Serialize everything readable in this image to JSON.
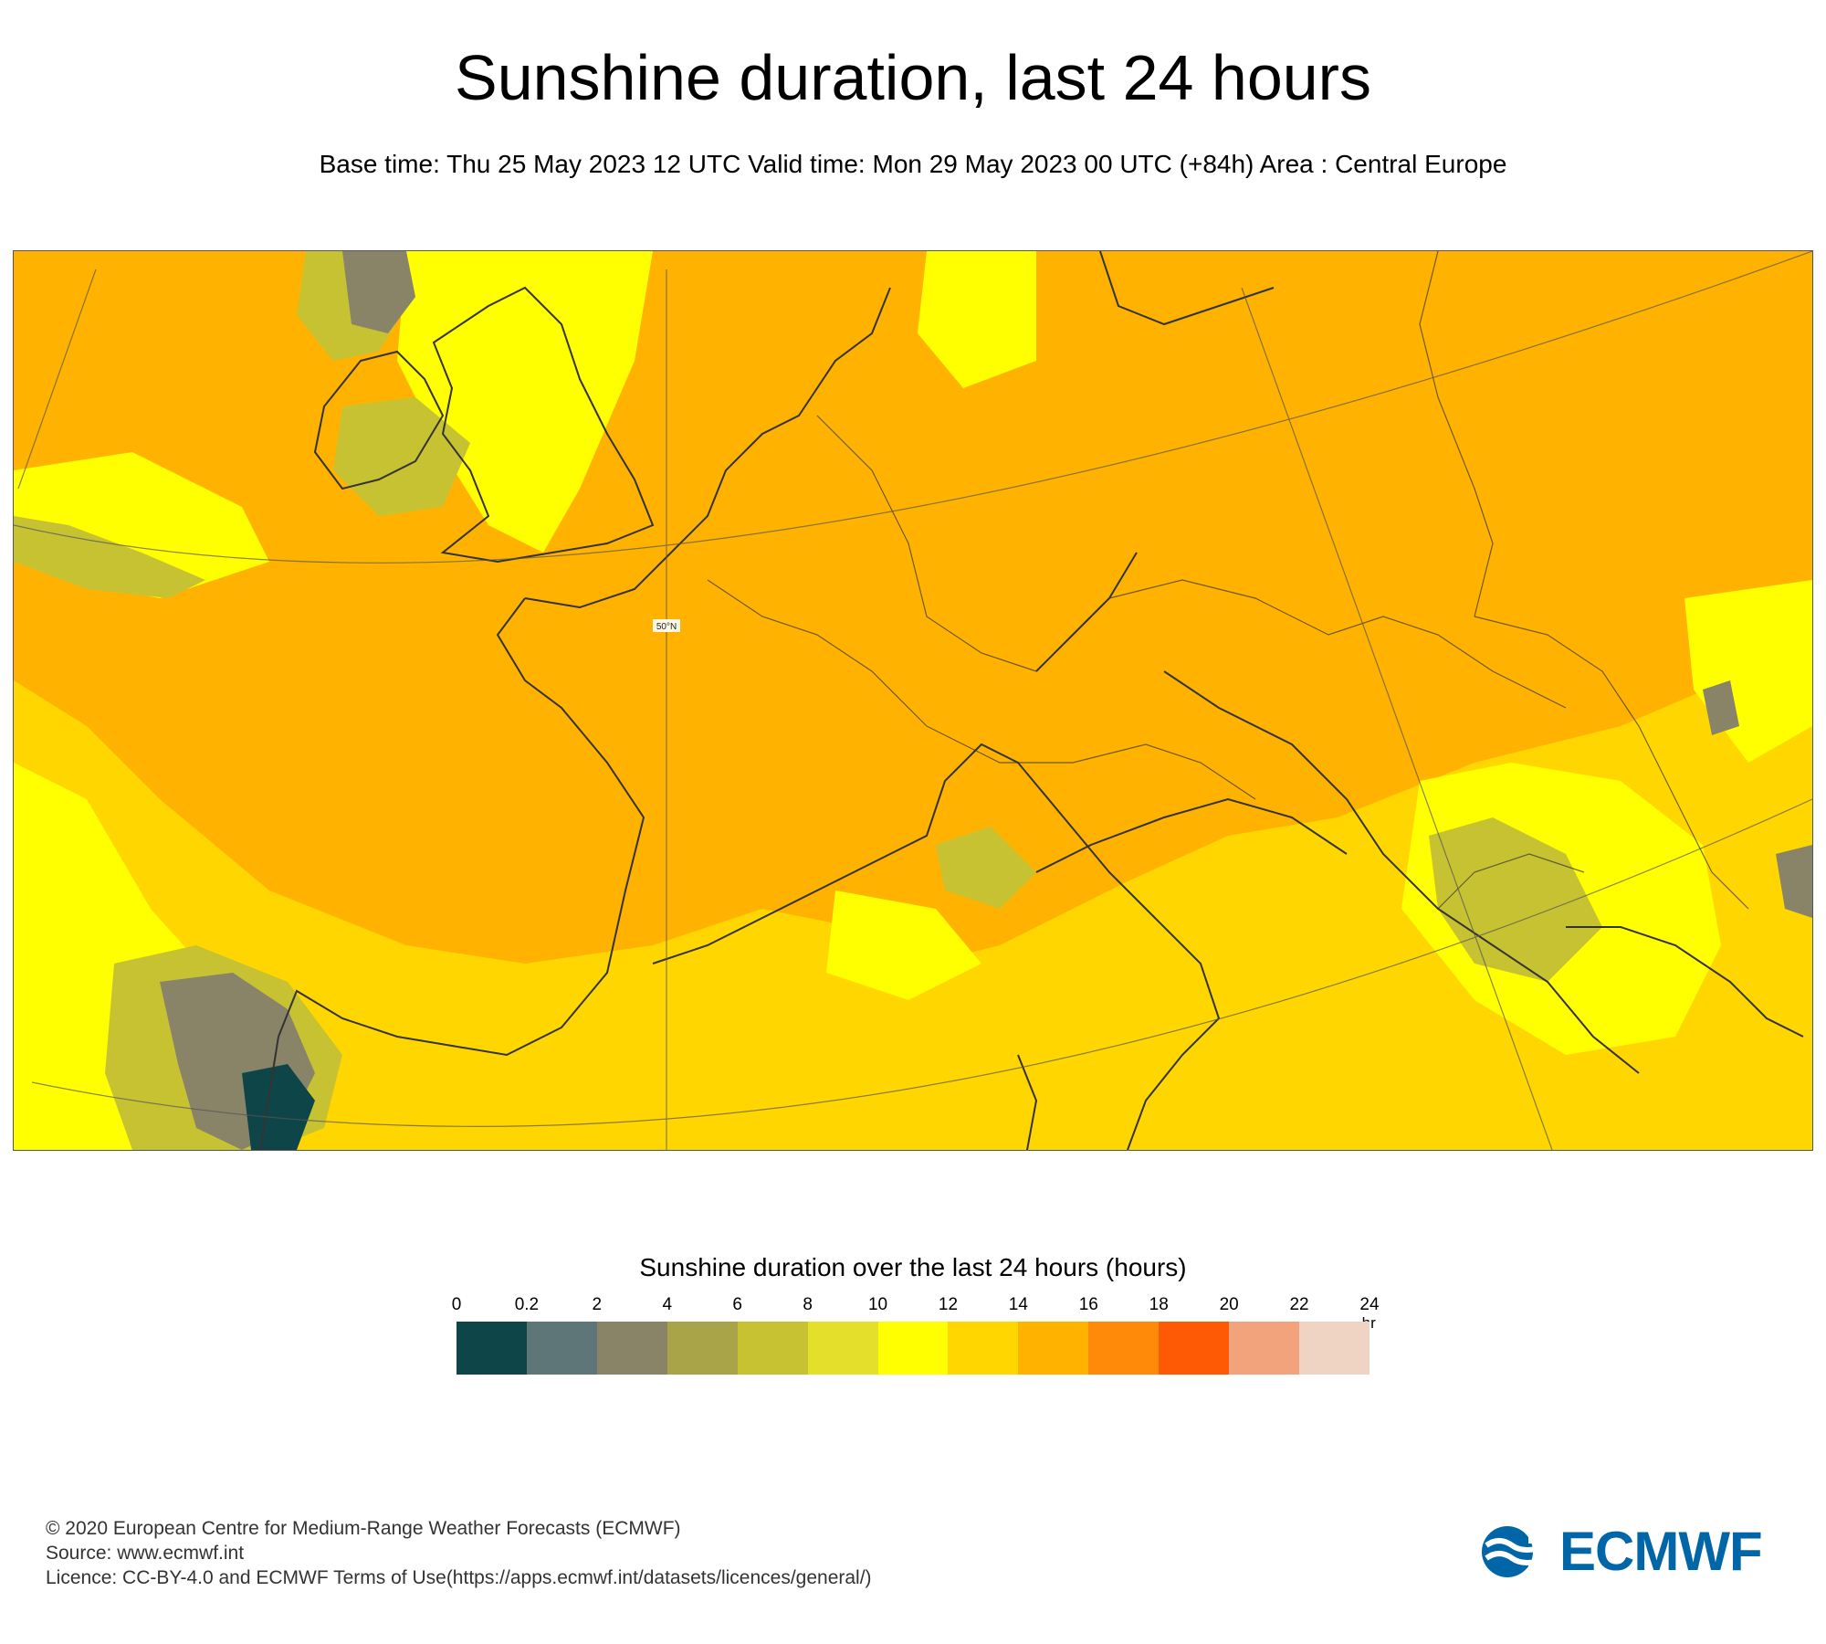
{
  "title": "Sunshine duration, last 24 hours",
  "subtitle": "Base time: Thu 25 May 2023 12 UTC Valid time: Mon 29 May 2023 00 UTC (+84h) Area : Central Europe",
  "map": {
    "latitude_label": "50°N",
    "legend": {
      "title": "Sunshine duration over the last 24 hours (hours)",
      "unit": "-hr",
      "ticks": [
        "0",
        "0.2",
        "2",
        "4",
        "6",
        "8",
        "10",
        "12",
        "14",
        "16",
        "18",
        "20",
        "22",
        "24"
      ],
      "colors": [
        "#0d4549",
        "#5e7677",
        "#898467",
        "#a9a448",
        "#c7c232",
        "#e3df2a",
        "#ffff00",
        "#ffd600",
        "#ffb200",
        "#ff8a0a",
        "#fe5a06",
        "#f3a37b",
        "#efd4c4"
      ]
    }
  },
  "footer": {
    "copyright": "© 2020 European Centre for Medium-Range Weather Forecasts (ECMWF)",
    "source": "Source: www.ecmwf.int",
    "licence": "Licence: CC-BY-4.0 and ECMWF Terms of Use(https://apps.ecmwf.int/datasets/licences/general/)"
  },
  "logo": {
    "text": "ECMWF",
    "color": "#0066a8"
  }
}
